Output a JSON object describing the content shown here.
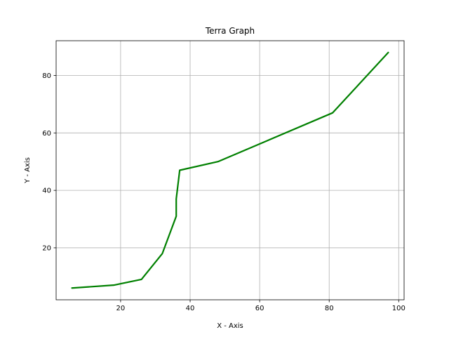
{
  "chart_data": {
    "type": "line",
    "title": "Terra Graph",
    "xlabel": "X - Axis",
    "ylabel": "Y - Axis",
    "xlim": [
      1.45,
      101.55
    ],
    "ylim": [
      1.9,
      92.1
    ],
    "xticks": [
      20,
      40,
      60,
      80,
      100
    ],
    "yticks": [
      20,
      40,
      60,
      80
    ],
    "grid": true,
    "series": [
      {
        "color": "#008000",
        "x": [
          6,
          18,
          26,
          32,
          36,
          36,
          37,
          48,
          81,
          97
        ],
        "y": [
          6,
          7,
          9,
          18,
          31,
          37,
          47,
          50,
          67,
          88
        ]
      }
    ]
  }
}
